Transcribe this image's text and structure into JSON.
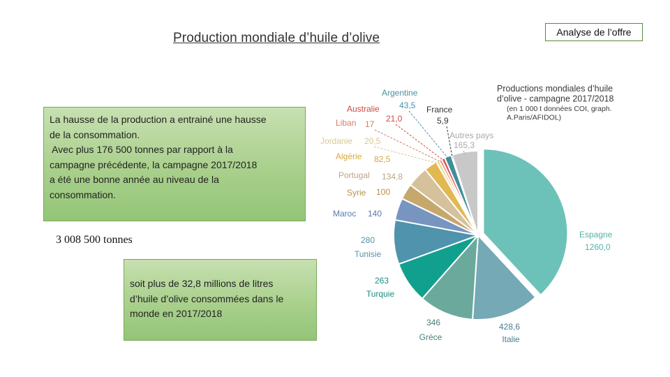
{
  "header": {
    "title": "Production mondiale d’huile d’olive",
    "section_tag": "Analyse de l’offre"
  },
  "box1": {
    "lines": [
      "La hausse de la production a entrainé une hausse",
      "de la consommation.",
      " Avec plus 176 500 tonnes par rapport à la",
      "campagne précédente, la campagne 2017/2018",
      "a été une bonne année au niveau de la",
      "consommation."
    ]
  },
  "total": "3 008 500 tonnes",
  "box2": {
    "lines": [
      "soit plus de 32,8 millions de litres",
      "d’huile d’olive consommées dans le",
      "monde en 2017/2018"
    ]
  },
  "chart_data": {
    "type": "pie",
    "title_lines": [
      "Productions mondiales d’huile",
      "d’olive - campagne 2017/2018",
      "(en 1 000 t données COI, graph.",
      "A.Paris/AFIDOL)"
    ],
    "slices": [
      {
        "name": "Espagne",
        "value": 1260.0,
        "value_label": "1260,0",
        "color": "#6cc2b8",
        "text_color": "#4fb3aa",
        "exploded": true
      },
      {
        "name": "Italie",
        "value": 428.6,
        "value_label": "428,6",
        "color": "#74a9b5",
        "text_color": "#4a7d8e",
        "exploded": false
      },
      {
        "name": "Grèce",
        "value": 346,
        "value_label": "346",
        "color": "#6aa99c",
        "text_color": "#4a7d79",
        "exploded": false
      },
      {
        "name": "Turquie",
        "value": 263,
        "value_label": "263",
        "color": "#12a08e",
        "text_color": "#1b8c83",
        "exploded": false
      },
      {
        "name": "Tunisie",
        "value": 280,
        "value_label": "280",
        "color": "#4f93ad",
        "text_color": "#5890a6",
        "exploded": false
      },
      {
        "name": "Maroc",
        "value": 140,
        "value_label": "140",
        "color": "#7895c0",
        "text_color": "#5a7aa8",
        "exploded": false
      },
      {
        "name": "Syrie",
        "value": 100,
        "value_label": "100",
        "color": "#c6a86c",
        "text_color": "#b8904a",
        "exploded": false
      },
      {
        "name": "Portugal",
        "value": 134.8,
        "value_label": "134,8",
        "color": "#d5c19c",
        "text_color": "#b8a686",
        "exploded": false
      },
      {
        "name": "Algérie",
        "value": 82.5,
        "value_label": "82,5",
        "color": "#e2b852",
        "text_color": "#d4a83e",
        "exploded": false
      },
      {
        "name": "Jordanie",
        "value": 20.5,
        "value_label": "20,5",
        "color": "#ecdca6",
        "text_color": "#d8c88e",
        "exploded": false
      },
      {
        "name": "Liban",
        "value": 17,
        "value_label": "17",
        "color": "#ec8c6c",
        "text_color": "#d47c60",
        "exploded": false
      },
      {
        "name": "Australie",
        "value": 21.0,
        "value_label": "21,0",
        "color": "#d8564f",
        "text_color": "#d24a44",
        "exploded": false
      },
      {
        "name": "Argentine",
        "value": 43.5,
        "value_label": "43,5",
        "color": "#3f8f9a",
        "text_color": "#4a90a6",
        "exploded": false
      },
      {
        "name": "France",
        "value": 5.9,
        "value_label": "5,9",
        "color": "#1d3a4a",
        "text_color": "#333333",
        "exploded": false
      },
      {
        "name": "Autres pays",
        "value": 165.3,
        "value_label": "165,3",
        "color": "#c8c8c8",
        "text_color": "#aaaaaa",
        "exploded": false
      }
    ]
  }
}
